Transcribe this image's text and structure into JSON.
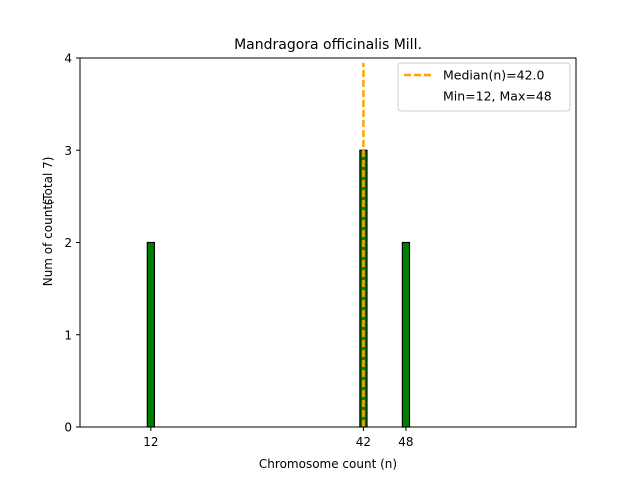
{
  "chart_data": {
    "type": "bar",
    "title": "Mandragora officinalis Mill.",
    "xlabel": "Chromosome count (n)",
    "ylabel": "Num of counts",
    "ylabel_extra": "(Total 7)",
    "xlim": [
      2,
      72
    ],
    "ylim": [
      0,
      4
    ],
    "x_ticks": [
      12,
      42,
      48
    ],
    "y_ticks": [
      0,
      1,
      2,
      3,
      4
    ],
    "bars": [
      {
        "x": 12,
        "count": 2
      },
      {
        "x": 42,
        "count": 3
      },
      {
        "x": 48,
        "count": 2
      }
    ],
    "bar_width": 1,
    "bar_color": "#008000",
    "median": 42.0,
    "median_color": "#FFA500",
    "legend": {
      "placement": "top-right",
      "entries": [
        "Median(n)=42.0",
        "Min=12, Max=48"
      ]
    }
  }
}
